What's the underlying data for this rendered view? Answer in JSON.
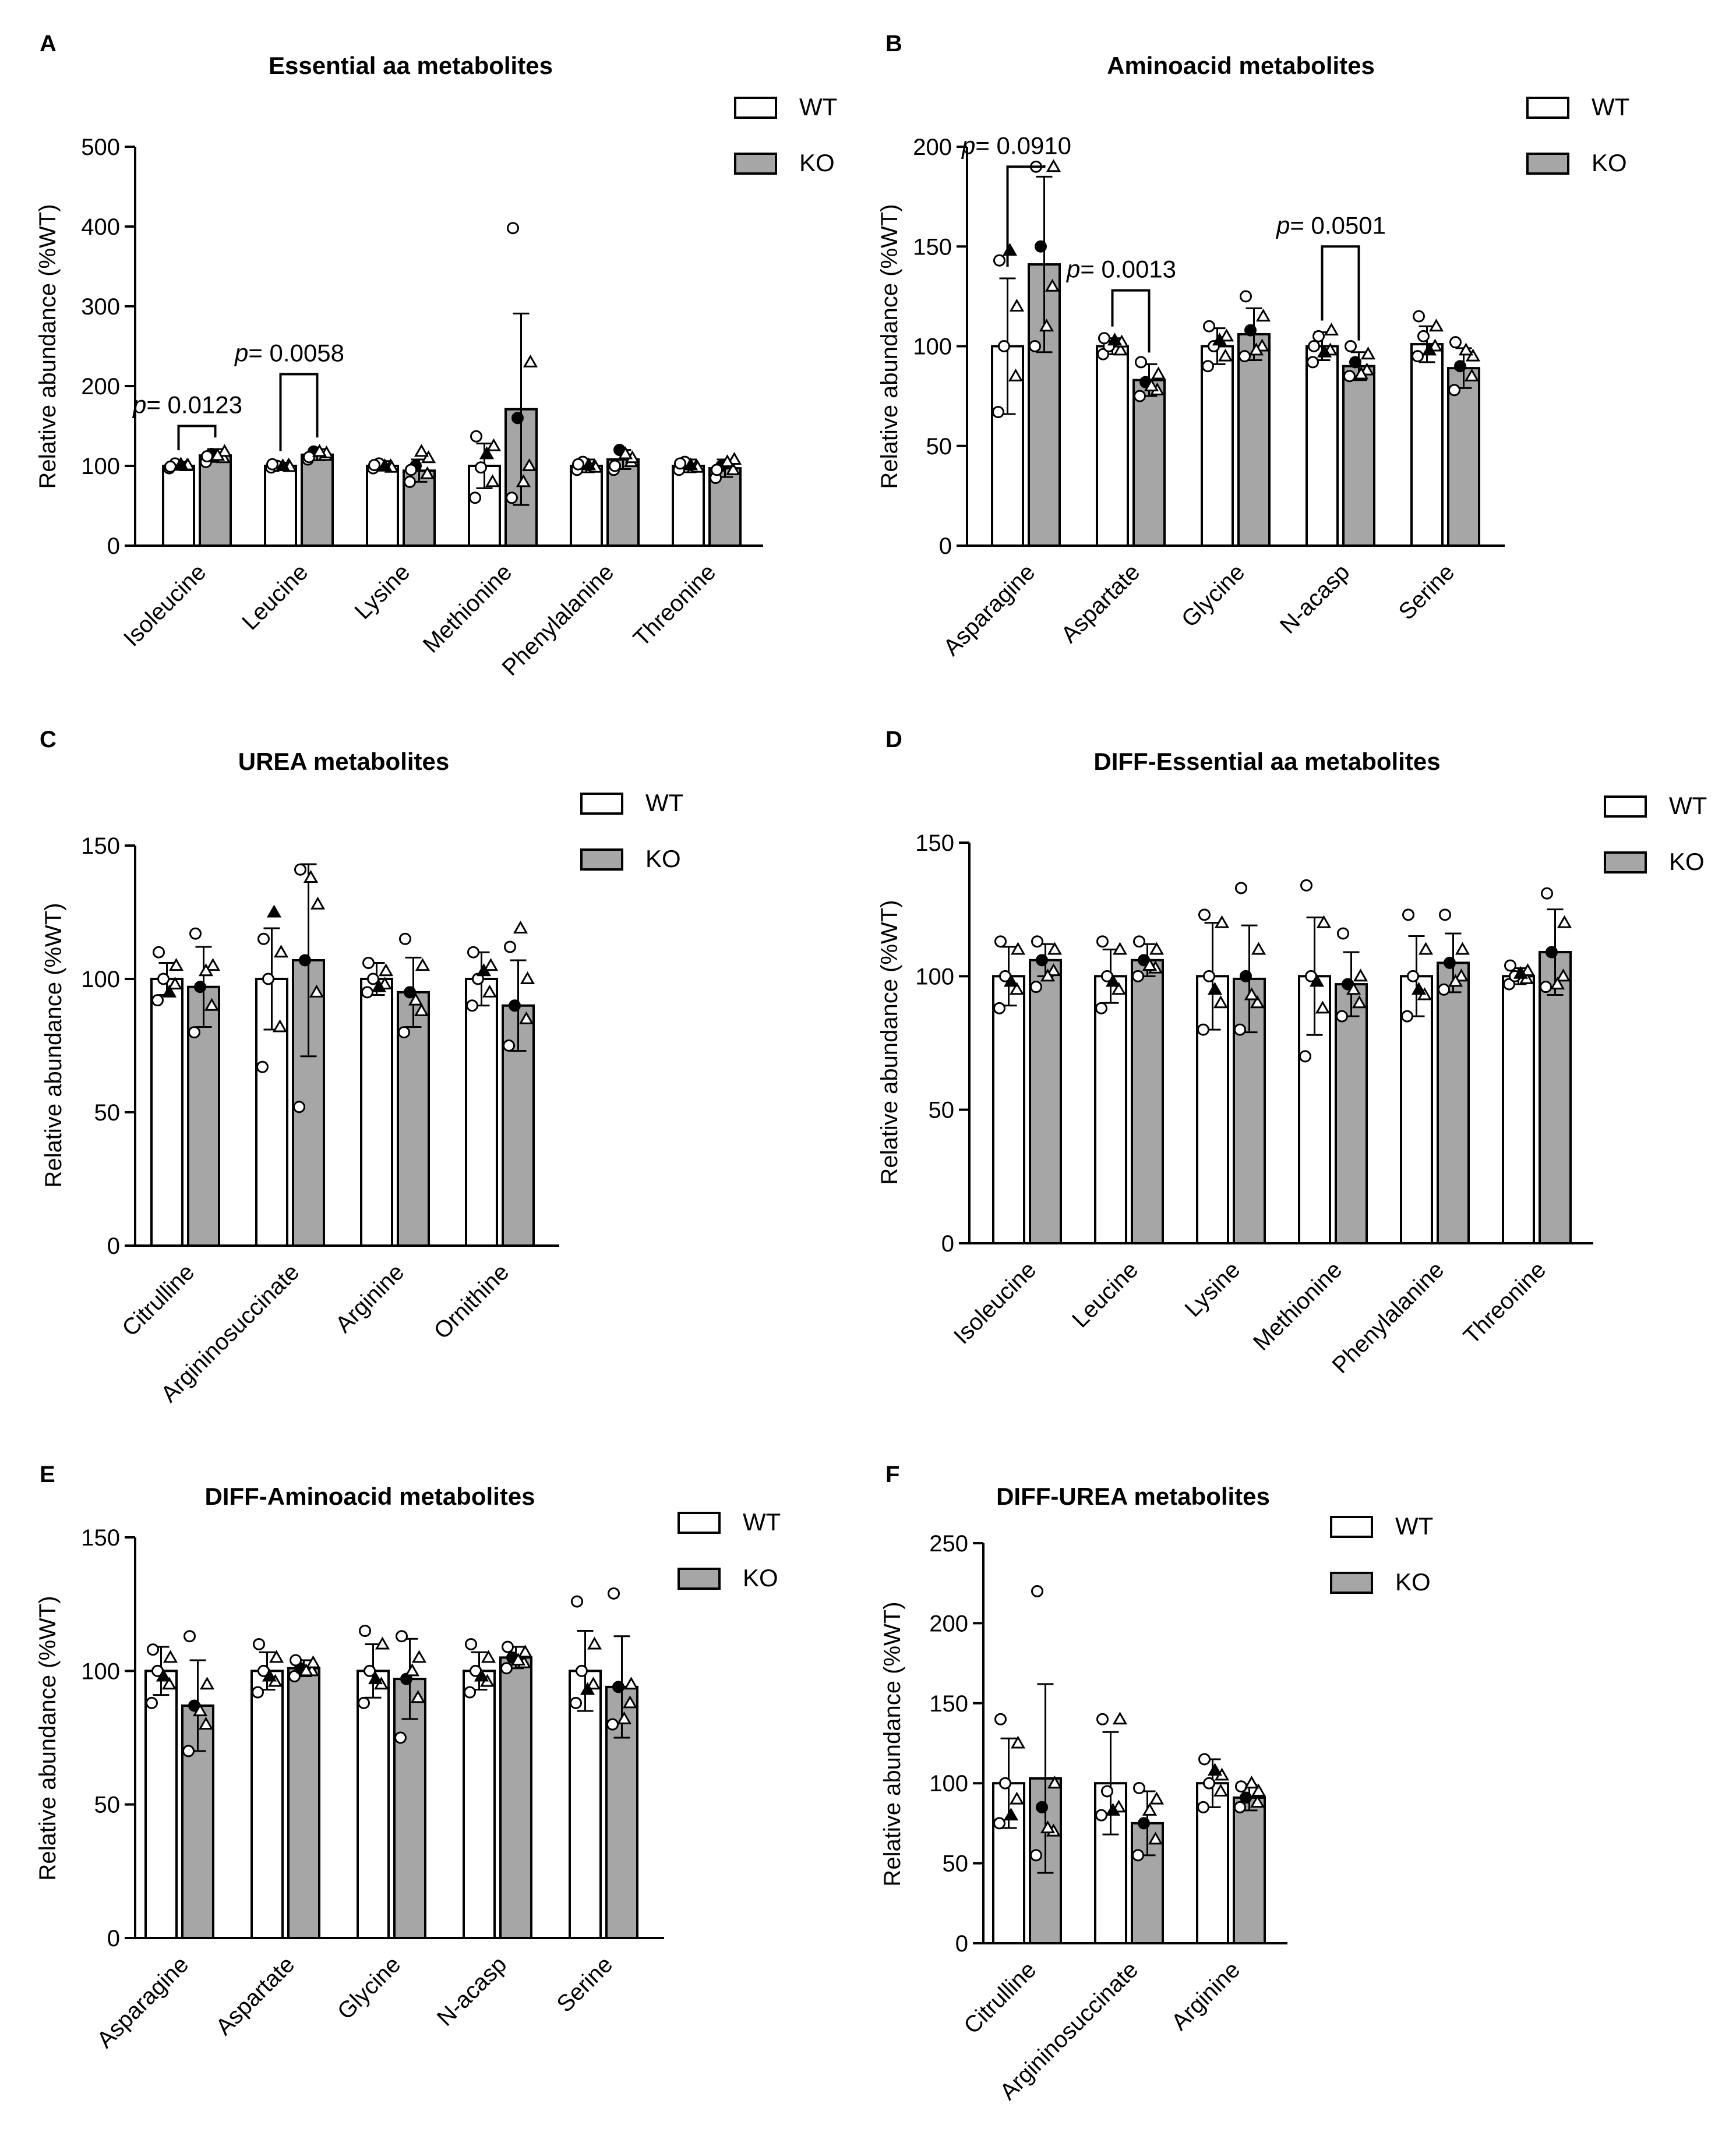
{
  "legend": {
    "wt": "WT",
    "ko": "KO"
  },
  "colors": {
    "wt_fill": "#ffffff",
    "ko_fill": "#a6a6a6",
    "stroke": "#000000"
  },
  "chart_data": [
    {
      "panel": "A",
      "type": "bar",
      "title": "Essential aa metabolites",
      "ylabel": "Relative abundance (%WT)",
      "ylim": [
        0,
        500
      ],
      "yticks": [
        "0",
        "100",
        "200",
        "300",
        "400",
        "500"
      ],
      "categories": [
        "Isoleucine",
        "Leucine",
        "Lysine",
        "Methionine",
        "Phenylalanine",
        "Threonine"
      ],
      "series": [
        {
          "name": "WT",
          "values": [
            100,
            100,
            100,
            100,
            100,
            100
          ],
          "sd": [
            5,
            4,
            6,
            28,
            8,
            8
          ],
          "points": [
            [
              97,
              100,
              103,
              101,
              99,
              102
            ],
            [
              98,
              101,
              100,
              99,
              102,
              100
            ],
            [
              97,
              100,
              103,
              98,
              101,
              100
            ],
            [
              60,
              80,
              98,
              125,
              137,
              115
            ],
            [
              95,
              100,
              105,
              98,
              102,
              101
            ],
            [
              95,
              100,
              105,
              98,
              103,
              101
            ]
          ]
        },
        {
          "name": "KO",
          "values": [
            113,
            114,
            94,
            171,
            108,
            97
          ],
          "sd": [
            8,
            7,
            14,
            120,
            12,
            11
          ],
          "points": [
            [
              105,
              110,
              115,
              118,
              112,
              113
            ],
            [
              108,
              113,
              118,
              116,
              111,
              118
            ],
            [
              80,
              90,
              100,
              110,
              95,
              118
            ],
            [
              60,
              100,
              160,
              230,
              398,
              80
            ],
            [
              95,
              105,
              120,
              110,
              100,
              115
            ],
            [
              85,
              95,
              100,
              108,
              95,
              105
            ]
          ]
        }
      ],
      "annotations": [
        {
          "label": "p",
          "value": "= 0.0123",
          "category": 0,
          "level": 150
        },
        {
          "label": "p",
          "value": "= 0.0058",
          "category": 1,
          "level": 215
        }
      ],
      "legend_position": "top-right"
    },
    {
      "panel": "B",
      "type": "bar",
      "title": "Aminoacid metabolites",
      "ylabel": "Relative abundance (%WT)",
      "ylim": [
        0,
        200
      ],
      "yticks": [
        "0",
        "50",
        "100",
        "150",
        "200"
      ],
      "categories": [
        "Asparagine",
        "Aspartate",
        "Glycine",
        "N-acasp",
        "Serine"
      ],
      "series": [
        {
          "name": "WT",
          "values": [
            100,
            100,
            100,
            100,
            101
          ],
          "sd": [
            34,
            4,
            9,
            7,
            9
          ],
          "points": [
            [
              67,
              85,
              100,
              120,
              143,
              148
            ],
            [
              96,
              98,
              100,
              102,
              104,
              103
            ],
            [
              90,
              95,
              100,
              105,
              110,
              103
            ],
            [
              92,
              98,
              105,
              108,
              100,
              97
            ],
            [
              95,
              100,
              105,
              110,
              115,
              98
            ]
          ]
        },
        {
          "name": "KO",
          "values": [
            141,
            83,
            106,
            90,
            89
          ],
          "sd": [
            44,
            8,
            13,
            7,
            10
          ],
          "points": [
            [
              100,
              130,
              150,
              190,
              190,
              110
            ],
            [
              75,
              78,
              82,
              86,
              92,
              80
            ],
            [
              95,
              100,
              108,
              115,
              125,
              98
            ],
            [
              85,
              88,
              92,
              96,
              100,
              86
            ],
            [
              78,
              85,
              90,
              95,
              102,
              98
            ]
          ]
        }
      ],
      "annotations": [
        {
          "label": "p",
          "value": "= 0.0910",
          "category": 0,
          "level": 190
        },
        {
          "label": "p",
          "value": "= 0.0013",
          "category": 1,
          "level": 128
        },
        {
          "label": "p",
          "value": "= 0.0501",
          "category": 3,
          "level": 150
        }
      ],
      "legend_position": "top-right"
    },
    {
      "panel": "C",
      "type": "bar",
      "title": "UREA metabolites",
      "ylabel": "Relative abundance (%WT)",
      "ylim": [
        0,
        150
      ],
      "yticks": [
        "0",
        "50",
        "100",
        "150"
      ],
      "categories": [
        "Citrulline",
        "Argininosuccinate",
        "Arginine",
        "Ornithine"
      ],
      "series": [
        {
          "name": "WT",
          "values": [
            100,
            100,
            100,
            100
          ],
          "sd": [
            6,
            19,
            6,
            10
          ],
          "points": [
            [
              92,
              98,
              100,
              105,
              110,
              95
            ],
            [
              67,
              82,
              100,
              110,
              115,
              125
            ],
            [
              95,
              98,
              100,
              103,
              106,
              97
            ],
            [
              90,
              95,
              100,
              105,
              110,
              103
            ]
          ]
        },
        {
          "name": "KO",
          "values": [
            97,
            107,
            95,
            90
          ],
          "sd": [
            15,
            36,
            13,
            17
          ],
          "points": [
            [
              80,
              90,
              97,
              105,
              117,
              103
            ],
            [
              52,
              95,
              107,
              128,
              141,
              138
            ],
            [
              80,
              88,
              95,
              105,
              115,
              92
            ],
            [
              75,
              85,
              90,
              100,
              112,
              119
            ]
          ]
        }
      ],
      "annotations": [],
      "legend_position": "top-right"
    },
    {
      "panel": "D",
      "type": "bar",
      "title": "DIFF-Essential aa metabolites",
      "ylabel": "Relative abundance (%WT)",
      "ylim": [
        0,
        150
      ],
      "yticks": [
        "0",
        "50",
        "100",
        "150"
      ],
      "categories": [
        "Isoleucine",
        "Leucine",
        "Lysine",
        "Methionine",
        "Phenylalanine",
        "Threonine"
      ],
      "series": [
        {
          "name": "WT",
          "values": [
            100,
            100,
            100,
            100,
            100,
            100
          ],
          "sd": [
            11,
            10,
            20,
            22,
            15,
            3
          ],
          "points": [
            [
              88,
              95,
              100,
              110,
              113,
              98
            ],
            [
              88,
              95,
              100,
              110,
              113,
              98
            ],
            [
              80,
              90,
              100,
              120,
              123,
              95
            ],
            [
              70,
              88,
              100,
              120,
              134,
              98
            ],
            [
              85,
              93,
              100,
              110,
              123,
              95
            ],
            [
              97,
              99,
              100,
              102,
              104,
              101
            ]
          ]
        },
        {
          "name": "KO",
          "values": [
            106,
            106,
            99,
            97,
            105,
            109
          ],
          "sd": [
            6,
            6,
            20,
            12,
            11,
            16
          ],
          "points": [
            [
              96,
              102,
              106,
              110,
              113,
              100
            ],
            [
              100,
              103,
              106,
              110,
              113,
              104
            ],
            [
              80,
              90,
              100,
              110,
              133,
              93
            ],
            [
              85,
              90,
              97,
              100,
              116,
              95
            ],
            [
              95,
              100,
              105,
              110,
              123,
              98
            ],
            [
              96,
              100,
              109,
              120,
              131,
              97
            ]
          ]
        }
      ],
      "annotations": [],
      "legend_position": "top-right"
    },
    {
      "panel": "E",
      "type": "bar",
      "title": "DIFF-Aminoacid metabolites",
      "ylabel": "Relative abundance (%WT)",
      "ylim": [
        0,
        150
      ],
      "yticks": [
        "0",
        "50",
        "100",
        "150"
      ],
      "categories": [
        "Asparagine",
        "Aspartate",
        "Glycine",
        "N-acasp",
        "Serine"
      ],
      "series": [
        {
          "name": "WT",
          "values": [
            100,
            100,
            100,
            100,
            100
          ],
          "sd": [
            9,
            7,
            10,
            7,
            15
          ],
          "points": [
            [
              88,
              95,
              100,
              105,
              108,
              98
            ],
            [
              92,
              96,
              100,
              105,
              110,
              98
            ],
            [
              88,
              95,
              100,
              110,
              115,
              97
            ],
            [
              92,
              96,
              100,
              105,
              110,
              98
            ],
            [
              88,
              95,
              100,
              110,
              126,
              93
            ]
          ]
        },
        {
          "name": "KO",
          "values": [
            87,
            101,
            97,
            105,
            94
          ],
          "sd": [
            17,
            3,
            15,
            4,
            19
          ],
          "points": [
            [
              70,
              80,
              87,
              95,
              113,
              85
            ],
            [
              98,
              100,
              101,
              103,
              104,
              100
            ],
            [
              75,
              90,
              97,
              105,
              113,
              100
            ],
            [
              101,
              103,
              105,
              107,
              109,
              104
            ],
            [
              80,
              88,
              94,
              95,
              129,
              82
            ]
          ]
        }
      ],
      "annotations": [],
      "legend_position": "top-right"
    },
    {
      "panel": "F",
      "type": "bar",
      "title": "DIFF-UREA metabolites",
      "ylabel": "Relative abundance (%WT)",
      "ylim": [
        0,
        250
      ],
      "yticks": [
        "0",
        "50",
        "100",
        "150",
        "200",
        "250"
      ],
      "categories": [
        "Citrulline",
        "Argininosuccinate",
        "Arginine"
      ],
      "series": [
        {
          "name": "WT",
          "values": [
            100,
            100,
            100
          ],
          "sd": [
            28,
            32,
            15
          ],
          "points": [
            [
              75,
              90,
              100,
              125,
              140,
              80
            ],
            [
              80,
              85,
              95,
              140,
              140,
              83
            ],
            [
              85,
              95,
              100,
              105,
              115,
              108
            ]
          ]
        },
        {
          "name": "KO",
          "values": [
            103,
            75,
            91
          ],
          "sd": [
            59,
            20,
            8
          ],
          "points": [
            [
              55,
              70,
              85,
              100,
              220,
              72
            ],
            [
              55,
              65,
              75,
              90,
              97,
              83
            ],
            [
              85,
              88,
              91,
              95,
              98,
              100
            ]
          ]
        }
      ],
      "annotations": [],
      "legend_position": "top-right"
    }
  ]
}
